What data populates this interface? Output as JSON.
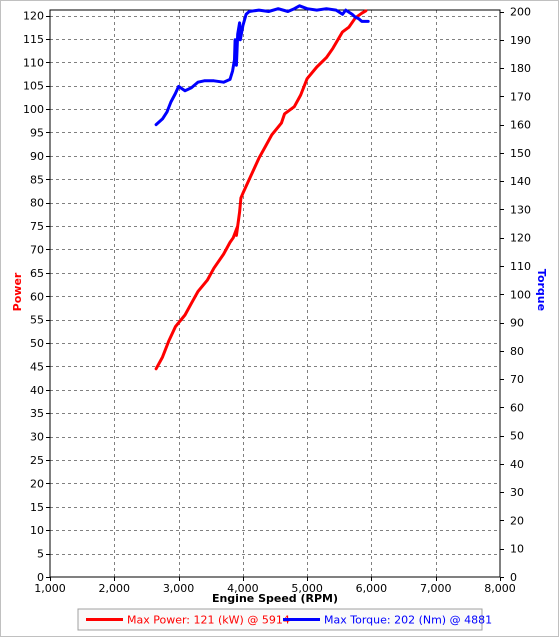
{
  "chart_data": {
    "type": "line",
    "xlabel": "Engine Speed (RPM)",
    "y1label": "Power",
    "y2label": "Torque",
    "xlim": [
      1000,
      8000
    ],
    "y1lim": [
      0,
      120
    ],
    "y2lim": [
      0,
      200
    ],
    "x_ticks": [
      "1,000",
      "2,000",
      "3,000",
      "4,000",
      "5,000",
      "6,000",
      "7,000",
      "8,000"
    ],
    "x_tick_values": [
      1000,
      2000,
      3000,
      4000,
      5000,
      6000,
      7000,
      8000
    ],
    "y1_ticks": [
      0,
      5,
      10,
      15,
      20,
      25,
      30,
      35,
      40,
      45,
      50,
      55,
      60,
      65,
      70,
      75,
      80,
      85,
      90,
      95,
      100,
      105,
      110,
      115,
      120
    ],
    "y2_ticks": [
      0,
      10,
      20,
      30,
      40,
      50,
      60,
      70,
      80,
      90,
      100,
      110,
      120,
      130,
      140,
      150,
      160,
      170,
      180,
      190,
      200
    ],
    "grid": true,
    "legend_position": "bottom",
    "series": [
      {
        "name": "Max Power: 121 (kW) @ 5914",
        "axis": "left",
        "color": "#ff0000",
        "points": [
          [
            2650,
            44.5
          ],
          [
            2750,
            47
          ],
          [
            2850,
            50.5
          ],
          [
            2950,
            53.5
          ],
          [
            3100,
            56
          ],
          [
            3200,
            58.5
          ],
          [
            3300,
            61
          ],
          [
            3450,
            63.5
          ],
          [
            3550,
            66
          ],
          [
            3700,
            69
          ],
          [
            3800,
            71.5
          ],
          [
            3850,
            72.5
          ],
          [
            3920,
            75
          ],
          [
            3900,
            73
          ],
          [
            3950,
            78
          ],
          [
            3970,
            81
          ],
          [
            4000,
            82
          ],
          [
            4050,
            83.5
          ],
          [
            4150,
            86.5
          ],
          [
            4250,
            89.5
          ],
          [
            4350,
            92
          ],
          [
            4450,
            94.5
          ],
          [
            4600,
            97
          ],
          [
            4650,
            99
          ],
          [
            4800,
            100.5
          ],
          [
            4900,
            103
          ],
          [
            5000,
            106.5
          ],
          [
            5150,
            109
          ],
          [
            5300,
            111
          ],
          [
            5400,
            113
          ],
          [
            5550,
            116.5
          ],
          [
            5650,
            117.5
          ],
          [
            5750,
            119.5
          ],
          [
            5850,
            120.5
          ],
          [
            5914,
            121
          ]
        ]
      },
      {
        "name": "Max Torque: 202 (Nm) @ 4881",
        "axis": "right",
        "color": "#0000ff",
        "points": [
          [
            2650,
            160
          ],
          [
            2750,
            162
          ],
          [
            2820,
            164.5
          ],
          [
            2880,
            168
          ],
          [
            2950,
            171
          ],
          [
            3000,
            173.5
          ],
          [
            3100,
            172
          ],
          [
            3200,
            173
          ],
          [
            3300,
            175
          ],
          [
            3400,
            175.5
          ],
          [
            3550,
            175.5
          ],
          [
            3700,
            175
          ],
          [
            3800,
            176
          ],
          [
            3840,
            179
          ],
          [
            3870,
            183
          ],
          [
            3880,
            190
          ],
          [
            3900,
            181
          ],
          [
            3920,
            192
          ],
          [
            3950,
            196
          ],
          [
            3960,
            190
          ],
          [
            4000,
            195
          ],
          [
            4050,
            199
          ],
          [
            4100,
            200
          ],
          [
            4250,
            200.5
          ],
          [
            4400,
            200
          ],
          [
            4550,
            201
          ],
          [
            4700,
            200
          ],
          [
            4800,
            201
          ],
          [
            4881,
            202
          ],
          [
            5000,
            201
          ],
          [
            5150,
            200.5
          ],
          [
            5300,
            201
          ],
          [
            5450,
            200.5
          ],
          [
            5550,
            199
          ],
          [
            5600,
            200.5
          ],
          [
            5700,
            199
          ],
          [
            5750,
            198
          ],
          [
            5800,
            197.5
          ],
          [
            5850,
            196.5
          ],
          [
            5950,
            196.5
          ]
        ]
      }
    ]
  }
}
